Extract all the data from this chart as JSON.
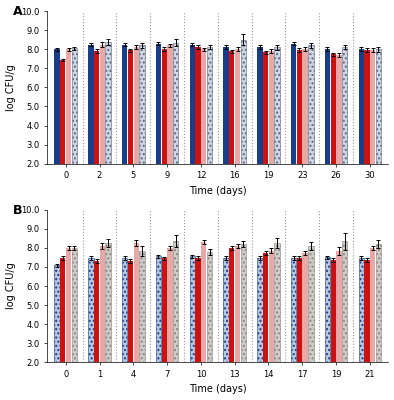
{
  "panel_A": {
    "time_points": [
      0,
      2,
      5,
      9,
      12,
      16,
      19,
      23,
      26,
      30
    ],
    "bar_values": [
      [
        8.0,
        7.45,
        8.0,
        8.05
      ],
      [
        8.25,
        7.9,
        8.25,
        8.4
      ],
      [
        8.25,
        7.95,
        8.1,
        8.2
      ],
      [
        8.3,
        8.0,
        8.2,
        8.35
      ],
      [
        8.25,
        8.1,
        8.0,
        8.1
      ],
      [
        8.1,
        7.9,
        8.0,
        8.5
      ],
      [
        8.1,
        7.85,
        7.9,
        8.1
      ],
      [
        8.3,
        7.95,
        8.0,
        8.2
      ],
      [
        8.0,
        7.75,
        7.7,
        8.1
      ],
      [
        8.0,
        7.95,
        7.95,
        8.0
      ]
    ],
    "errors": [
      [
        0.08,
        0.05,
        0.08,
        0.08
      ],
      [
        0.1,
        0.1,
        0.12,
        0.15
      ],
      [
        0.1,
        0.08,
        0.1,
        0.12
      ],
      [
        0.1,
        0.1,
        0.1,
        0.2
      ],
      [
        0.1,
        0.1,
        0.08,
        0.1
      ],
      [
        0.1,
        0.08,
        0.1,
        0.3
      ],
      [
        0.1,
        0.08,
        0.1,
        0.12
      ],
      [
        0.1,
        0.1,
        0.1,
        0.15
      ],
      [
        0.1,
        0.08,
        0.08,
        0.1
      ],
      [
        0.1,
        0.1,
        0.1,
        0.12
      ]
    ],
    "xlabel": "Time (days)",
    "ylabel": "log CFU/g",
    "ylim": [
      2.0,
      10.0
    ],
    "yticks": [
      2.0,
      3.0,
      4.0,
      5.0,
      6.0,
      7.0,
      8.0,
      9.0,
      10.0
    ],
    "label": "A"
  },
  "panel_B": {
    "time_points": [
      0,
      1,
      4,
      7,
      10,
      13,
      14,
      17,
      19,
      21
    ],
    "bar_values": [
      [
        7.1,
        7.45,
        8.0,
        8.0
      ],
      [
        7.45,
        7.3,
        8.1,
        8.25
      ],
      [
        7.45,
        7.3,
        8.25,
        7.85
      ],
      [
        7.55,
        7.45,
        8.0,
        8.35
      ],
      [
        7.55,
        7.45,
        8.3,
        7.8
      ],
      [
        7.45,
        8.0,
        8.1,
        8.2
      ],
      [
        7.45,
        7.75,
        7.85,
        8.25
      ],
      [
        7.45,
        7.45,
        7.75,
        8.1
      ],
      [
        7.5,
        7.35,
        7.85,
        8.35
      ],
      [
        7.45,
        7.35,
        8.0,
        8.2
      ]
    ],
    "errors": [
      [
        0.08,
        0.1,
        0.1,
        0.1
      ],
      [
        0.1,
        0.1,
        0.15,
        0.2
      ],
      [
        0.1,
        0.1,
        0.15,
        0.25
      ],
      [
        0.1,
        0.08,
        0.12,
        0.3
      ],
      [
        0.1,
        0.1,
        0.12,
        0.15
      ],
      [
        0.1,
        0.1,
        0.12,
        0.15
      ],
      [
        0.1,
        0.1,
        0.12,
        0.25
      ],
      [
        0.1,
        0.1,
        0.1,
        0.2
      ],
      [
        0.1,
        0.1,
        0.2,
        0.45
      ],
      [
        0.1,
        0.1,
        0.1,
        0.2
      ]
    ],
    "xlabel": "Time (days)",
    "ylabel": "log CFU/g",
    "ylim": [
      2.0,
      10.0
    ],
    "yticks": [
      2.0,
      3.0,
      4.0,
      5.0,
      6.0,
      7.0,
      8.0,
      9.0,
      10.0
    ],
    "label": "B"
  },
  "colors_A": [
    "#1a3d8a",
    "#cc1111",
    "#e8a8a8",
    "#5a6a7a"
  ],
  "colors_B": [
    "#1a3d8a",
    "#cc1111",
    "#e8a8a8",
    "#8a8580"
  ],
  "background_color": "#ffffff",
  "bar_width": 0.17,
  "fontsize": 7,
  "label_fontsize": 9
}
